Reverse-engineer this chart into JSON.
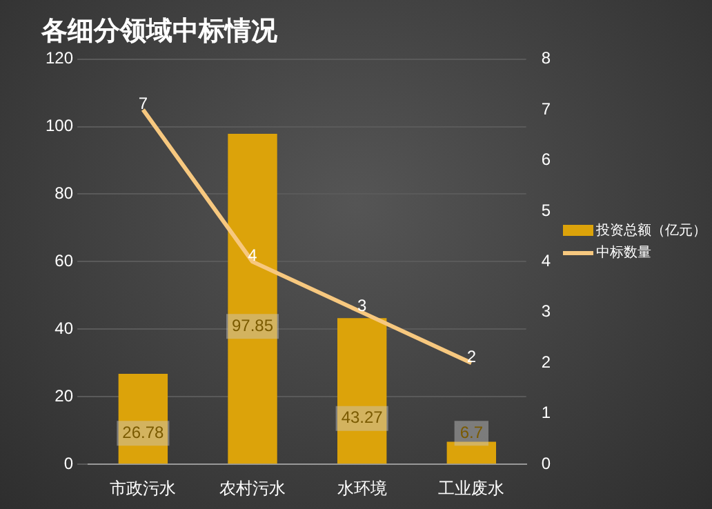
{
  "chart_data": {
    "type": "bar",
    "title": "各细分领域中标情况",
    "categories": [
      "市政污水",
      "农村污水",
      "水环境",
      "工业废水"
    ],
    "series": [
      {
        "name": "投资总额（亿元）",
        "color": "#dca30a",
        "values": [
          26.78,
          97.85,
          43.27,
          6.7
        ]
      },
      {
        "name": "中标数量",
        "type": "line",
        "axis": "y2",
        "color": "#f7c87f",
        "values": [
          7,
          4,
          3,
          2
        ]
      }
    ],
    "ylim": [
      0,
      120
    ],
    "yticks": [
      0,
      20,
      40,
      60,
      80,
      100,
      120
    ],
    "y2lim": [
      0,
      8
    ],
    "y2ticks": [
      0,
      1,
      2,
      3,
      4,
      5,
      6,
      7,
      8
    ],
    "grid": "y",
    "legend": "right",
    "data_labels": true,
    "marker": "none"
  }
}
